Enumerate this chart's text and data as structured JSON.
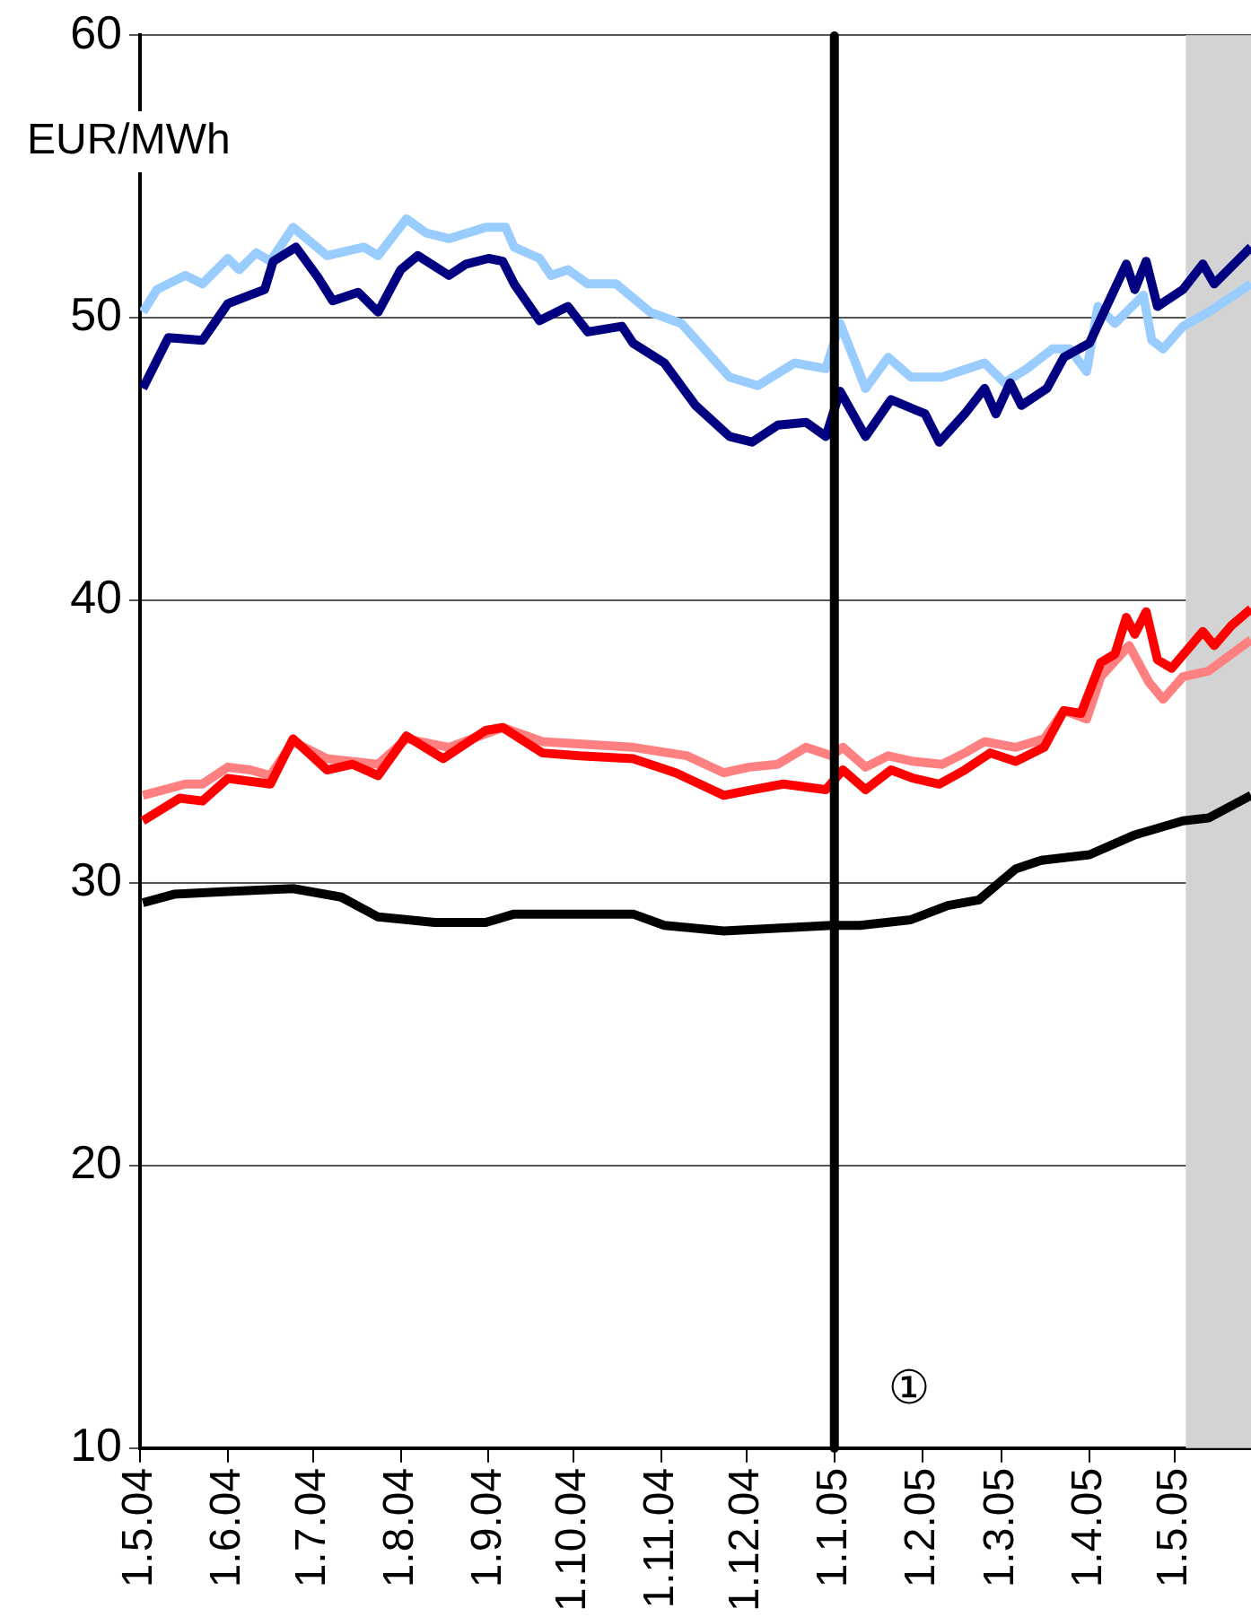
{
  "chart_data": {
    "type": "line",
    "ylabel": "EUR/MWh",
    "xlim": [
      "2004-05-01",
      "2005-05-28"
    ],
    "xticks": [
      {
        "value": "2004-05-01",
        "label": "1.5.04"
      },
      {
        "value": "2004-06-01",
        "label": "1.6.04"
      },
      {
        "value": "2004-07-01",
        "label": "1.7.04"
      },
      {
        "value": "2004-08-01",
        "label": "1.8.04"
      },
      {
        "value": "2004-09-01",
        "label": "1.9.04"
      },
      {
        "value": "2004-10-01",
        "label": "1.10.04"
      },
      {
        "value": "2004-11-01",
        "label": "1.11.04"
      },
      {
        "value": "2004-12-01",
        "label": "1.12.04"
      },
      {
        "value": "2005-01-01",
        "label": "1.1.05"
      },
      {
        "value": "2005-02-01",
        "label": "1.2.05"
      },
      {
        "value": "2005-03-01",
        "label": "1.3.05"
      },
      {
        "value": "2005-04-01",
        "label": "1.4.05"
      },
      {
        "value": "2005-05-01",
        "label": "1.5.05"
      }
    ],
    "ylim": [
      10,
      60
    ],
    "yticks": [
      10,
      20,
      30,
      40,
      50,
      60
    ],
    "grid": "y",
    "legend": false,
    "ref_lines": [
      {
        "axis": "x",
        "value": "2005-01-01",
        "label": "①",
        "color": "#000000"
      }
    ],
    "bands": [
      {
        "axis": "x",
        "from": "2005-05-05",
        "to": "2005-05-28",
        "color": "#d3d3d3"
      }
    ],
    "series": [
      {
        "color": "#000080",
        "x": [
          "2004-05-02",
          "2004-05-11",
          "2004-05-23",
          "2004-06-01",
          "2004-06-14",
          "2004-06-17",
          "2004-06-25",
          "2004-07-03",
          "2004-07-08",
          "2004-07-17",
          "2004-07-24",
          "2004-08-01",
          "2004-08-07",
          "2004-08-18",
          "2004-08-24",
          "2004-09-01",
          "2004-09-06",
          "2004-09-10",
          "2004-09-19",
          "2004-09-29",
          "2004-10-06",
          "2004-10-18",
          "2004-10-22",
          "2004-11-02",
          "2004-11-13",
          "2004-11-25",
          "2004-12-03",
          "2004-12-12",
          "2004-12-22",
          "2004-12-29",
          "2005-01-03",
          "2005-01-12",
          "2005-01-21",
          "2005-02-02",
          "2005-02-07",
          "2005-02-16",
          "2005-02-23",
          "2005-02-27",
          "2005-03-04",
          "2005-03-08",
          "2005-03-17",
          "2005-03-23",
          "2005-04-01",
          "2005-04-07",
          "2005-04-14",
          "2005-04-17",
          "2005-04-21",
          "2005-04-25",
          "2005-05-04",
          "2005-05-11",
          "2005-05-15",
          "2005-05-28"
        ],
        "values": [
          47.5,
          49.3,
          49.2,
          50.5,
          51.0,
          52.0,
          52.5,
          51.4,
          50.6,
          50.9,
          50.2,
          51.7,
          52.2,
          51.5,
          51.9,
          52.1,
          52.0,
          51.2,
          49.9,
          50.4,
          49.5,
          49.7,
          49.1,
          48.4,
          46.9,
          45.8,
          45.6,
          46.2,
          46.3,
          45.8,
          47.4,
          45.8,
          47.1,
          46.6,
          45.6,
          46.6,
          47.5,
          46.6,
          47.7,
          46.9,
          47.5,
          48.6,
          49.1,
          50.4,
          51.9,
          51.0,
          52.0,
          50.4,
          51.0,
          51.9,
          51.2,
          52.5
        ]
      },
      {
        "color": "#99ccff",
        "x": [
          "2004-05-02",
          "2004-05-07",
          "2004-05-17",
          "2004-05-23",
          "2004-06-01",
          "2004-06-05",
          "2004-06-11",
          "2004-06-16",
          "2004-06-24",
          "2004-07-06",
          "2004-07-19",
          "2004-07-24",
          "2004-08-03",
          "2004-08-10",
          "2004-08-18",
          "2004-08-31",
          "2004-09-07",
          "2004-09-10",
          "2004-09-19",
          "2004-09-23",
          "2004-09-29",
          "2004-10-06",
          "2004-10-16",
          "2004-10-28",
          "2004-11-08",
          "2004-11-25",
          "2004-12-05",
          "2004-12-18",
          "2004-12-29",
          "2005-01-03",
          "2005-01-12",
          "2005-01-20",
          "2005-01-28",
          "2005-02-08",
          "2005-02-23",
          "2005-03-02",
          "2005-03-10",
          "2005-03-19",
          "2005-03-25",
          "2005-03-31",
          "2005-04-04",
          "2005-04-10",
          "2005-04-20",
          "2005-04-23",
          "2005-04-27",
          "2005-05-04",
          "2005-05-13",
          "2005-05-28"
        ],
        "values": [
          50.2,
          51.0,
          51.5,
          51.2,
          52.1,
          51.7,
          52.3,
          52.0,
          53.2,
          52.2,
          52.5,
          52.2,
          53.5,
          53.0,
          52.8,
          53.2,
          53.2,
          52.5,
          52.1,
          51.5,
          51.7,
          51.2,
          51.2,
          50.2,
          49.8,
          47.9,
          47.6,
          48.4,
          48.2,
          49.8,
          47.5,
          48.6,
          47.9,
          47.9,
          48.4,
          47.7,
          48.2,
          48.9,
          48.9,
          48.1,
          50.4,
          49.8,
          50.8,
          49.2,
          48.9,
          49.7,
          50.2,
          51.2
        ]
      },
      {
        "color": "#ff0000",
        "x": [
          "2004-05-02",
          "2004-05-15",
          "2004-05-23",
          "2004-06-01",
          "2004-06-16",
          "2004-06-24",
          "2004-07-06",
          "2004-07-15",
          "2004-07-24",
          "2004-08-03",
          "2004-08-16",
          "2004-08-31",
          "2004-09-06",
          "2004-09-20",
          "2004-10-03",
          "2004-10-22",
          "2004-11-06",
          "2004-11-23",
          "2004-12-03",
          "2004-12-14",
          "2004-12-29",
          "2005-01-04",
          "2005-01-12",
          "2005-01-21",
          "2005-01-29",
          "2005-02-07",
          "2005-02-16",
          "2005-02-25",
          "2005-03-06",
          "2005-03-16",
          "2005-03-23",
          "2005-03-29",
          "2005-04-05",
          "2005-04-10",
          "2005-04-14",
          "2005-04-17",
          "2005-04-21",
          "2005-04-25",
          "2005-04-30",
          "2005-05-11",
          "2005-05-15",
          "2005-05-21",
          "2005-05-28"
        ],
        "values": [
          32.2,
          33.0,
          32.9,
          33.7,
          33.5,
          35.1,
          34.0,
          34.2,
          33.8,
          35.2,
          34.4,
          35.4,
          35.5,
          34.6,
          34.5,
          34.4,
          33.9,
          33.1,
          33.3,
          33.5,
          33.3,
          34.0,
          33.3,
          34.0,
          33.7,
          33.5,
          34.0,
          34.6,
          34.3,
          34.8,
          36.1,
          36.0,
          37.8,
          38.1,
          39.4,
          38.8,
          39.6,
          37.9,
          37.6,
          38.9,
          38.4,
          39.1,
          39.7
        ]
      },
      {
        "color": "#ff8080",
        "x": [
          "2004-05-02",
          "2004-05-17",
          "2004-05-23",
          "2004-06-01",
          "2004-06-09",
          "2004-06-16",
          "2004-06-24",
          "2004-07-06",
          "2004-07-24",
          "2004-08-03",
          "2004-08-18",
          "2004-09-06",
          "2004-09-20",
          "2004-10-22",
          "2004-11-10",
          "2004-11-23",
          "2004-12-02",
          "2004-12-12",
          "2004-12-22",
          "2004-12-31",
          "2005-01-04",
          "2005-01-12",
          "2005-01-20",
          "2005-01-29",
          "2005-02-08",
          "2005-02-16",
          "2005-02-23",
          "2005-03-06",
          "2005-03-16",
          "2005-03-23",
          "2005-03-31",
          "2005-04-05",
          "2005-04-15",
          "2005-04-22",
          "2005-04-27",
          "2005-05-04",
          "2005-05-13",
          "2005-05-28"
        ],
        "values": [
          33.1,
          33.5,
          33.5,
          34.1,
          34.0,
          33.8,
          35.0,
          34.4,
          34.2,
          35.1,
          34.8,
          35.5,
          35.0,
          34.8,
          34.5,
          33.9,
          34.1,
          34.2,
          34.8,
          34.5,
          34.8,
          34.1,
          34.5,
          34.3,
          34.2,
          34.6,
          35.0,
          34.8,
          35.1,
          36.1,
          35.8,
          37.3,
          38.4,
          37.1,
          36.5,
          37.3,
          37.5,
          38.6
        ]
      },
      {
        "color": "#000000",
        "x": [
          "2004-05-02",
          "2004-05-13",
          "2004-06-01",
          "2004-06-24",
          "2004-07-11",
          "2004-07-24",
          "2004-08-13",
          "2004-08-31",
          "2004-09-10",
          "2004-10-22",
          "2004-11-02",
          "2004-11-23",
          "2004-12-31",
          "2005-01-10",
          "2005-01-28",
          "2005-02-10",
          "2005-02-21",
          "2005-03-06",
          "2005-03-15",
          "2005-04-01",
          "2005-04-17",
          "2005-05-04",
          "2005-05-13",
          "2005-05-28"
        ],
        "values": [
          29.3,
          29.6,
          29.7,
          29.8,
          29.5,
          28.8,
          28.6,
          28.6,
          28.9,
          28.9,
          28.5,
          28.3,
          28.5,
          28.5,
          28.7,
          29.2,
          29.4,
          30.5,
          30.8,
          31.0,
          31.7,
          32.2,
          32.3,
          33.1
        ]
      }
    ]
  }
}
